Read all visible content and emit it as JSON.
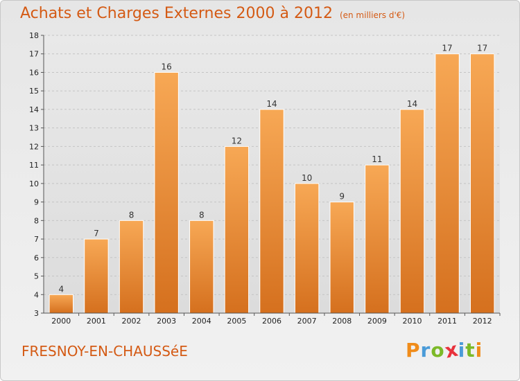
{
  "title": "Achats et Charges Externes 2000 à 2012",
  "unit": "(en milliers d'€)",
  "commune": "FRESNOY-EN-CHAUSSéE",
  "logo": {
    "letters": [
      "P",
      "r",
      "o",
      "x",
      "i",
      "t",
      "i"
    ],
    "colors": [
      "#f08c1a",
      "#4a9bd8",
      "#7cb928",
      "#e8323c",
      "#4a9bd8",
      "#7cb928",
      "#f08c1a"
    ]
  },
  "colors": {
    "accent": "#d45a14",
    "bar_top": "#f7a855",
    "bar_bottom": "#d5701e"
  },
  "chart_data": {
    "type": "bar",
    "title": "Achats et Charges Externes 2000 à 2012",
    "categories": [
      "2000",
      "2001",
      "2002",
      "2003",
      "2004",
      "2005",
      "2006",
      "2007",
      "2008",
      "2009",
      "2010",
      "2011",
      "2012"
    ],
    "values": [
      4,
      7,
      8,
      16,
      8,
      12,
      14,
      10,
      9,
      11,
      14,
      17,
      17
    ],
    "ylim": [
      3,
      18
    ],
    "yticks": [
      3,
      4,
      5,
      6,
      7,
      8,
      9,
      10,
      11,
      12,
      13,
      14,
      15,
      16,
      17,
      18
    ],
    "xlabel": "",
    "ylabel": "",
    "grid": true
  }
}
